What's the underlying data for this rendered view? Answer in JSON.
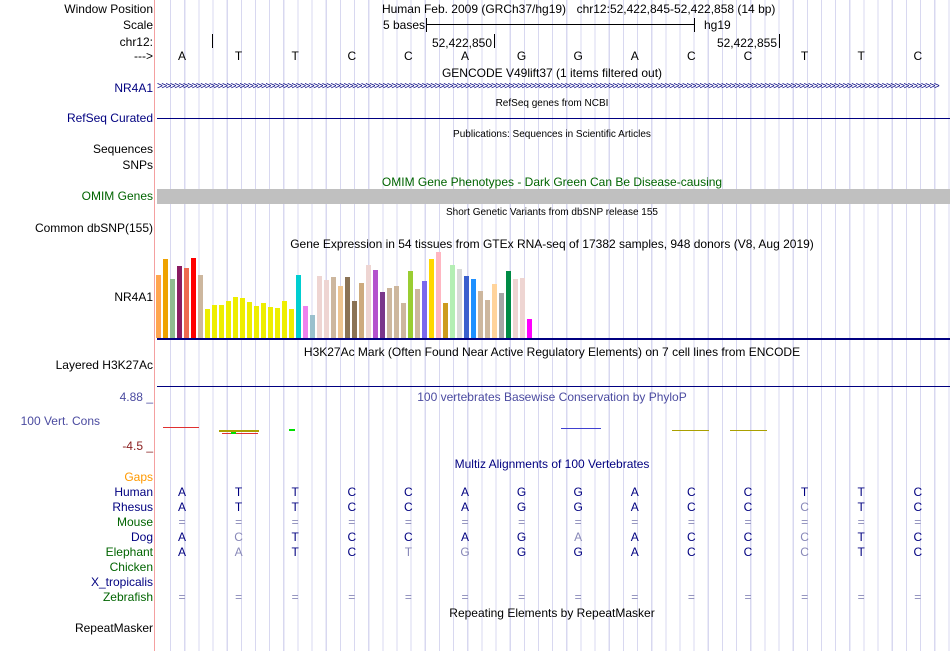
{
  "header": {
    "window_position_label": "Window Position",
    "assembly": "Human Feb. 2009 (GRCh37/hg19)",
    "position": "chr12:52,422,845-52,422,858 (14 bp)",
    "scale_label": "Scale",
    "scale_text": "5 bases",
    "scale_db": "hg19",
    "chrom_label": "chr12:",
    "coord1": "52,422,850",
    "coord2": "52,422,855",
    "strand_label": "--->"
  },
  "bases": [
    "A",
    "T",
    "T",
    "C",
    "C",
    "A",
    "G",
    "G",
    "A",
    "C",
    "C",
    "T",
    "T",
    "C"
  ],
  "tracks": {
    "gencode_title": "GENCODE V49lift37 (1 items filtered out)",
    "gencode_label": "NR4A1",
    "refseq_title": "RefSeq genes from NCBI",
    "refseq_label": "RefSeq Curated",
    "pubs_title": "Publications: Sequences in Scientific Articles",
    "pubs_label": "Sequences",
    "pubs_label2": "SNPs",
    "omim_title": "OMIM Gene Phenotypes - Dark Green Can Be Disease-causing",
    "omim_label": "OMIM Genes",
    "dbsnp_title": "Short Genetic Variants from dbSNP release 155",
    "dbsnp_label": "Common dbSNP(155)",
    "gtex_title": "Gene Expression in 54 tissues from GTEx RNA-seq of 17382 samples, 948 donors (V8, Aug 2019)",
    "gtex_label": "NR4A1",
    "h3k_title": "H3K27Ac Mark (Often Found Near Active Regulatory Elements) on 7 cell lines from ENCODE",
    "h3k_label": "Layered H3K27Ac",
    "phylop_title": "100 vertebrates Basewise Conservation by PhyloP",
    "phylop_label": "100 Vert. Cons",
    "phylop_max": "4.88 _",
    "phylop_min": "-4.5 _",
    "multiz_title": "Multiz Alignments of 100 Vertebrates",
    "gaps_label": "Gaps",
    "rmsk_title": "Repeating Elements by RepeatMasker",
    "rmsk_label": "RepeatMasker"
  },
  "gtex": {
    "heights": [
      63,
      79,
      59,
      72,
      70,
      80,
      63,
      29,
      33,
      33,
      37,
      41,
      40,
      36,
      32,
      35,
      31,
      30,
      37,
      29,
      63,
      32,
      23,
      62,
      58,
      61,
      52,
      61,
      37,
      55,
      73,
      68,
      46,
      50,
      52,
      35,
      67,
      49,
      57,
      79,
      86,
      35,
      73,
      69,
      62,
      59,
      47,
      38,
      54,
      45,
      67,
      59,
      60,
      19
    ],
    "colors": [
      "#FFA54F",
      "#EEA200",
      "#8FBC8F",
      "#8B1C62",
      "#EE6A50",
      "#FF0000",
      "#CDB79E",
      "#EEEE00",
      "#EEEE00",
      "#EEEE00",
      "#EEEE00",
      "#EEEE00",
      "#EEEE00",
      "#EEEE00",
      "#EEEE00",
      "#EEEE00",
      "#EEEE00",
      "#EEEE00",
      "#EEEE00",
      "#EEEE00",
      "#00CED1",
      "#EE82EE",
      "#9AC0CD",
      "#EED5D2",
      "#EED5D2",
      "#CDB79E",
      "#EEC591",
      "#8B7355",
      "#8B7355",
      "#CDAA7D",
      "#EED5D2",
      "#B452CD",
      "#7A378B",
      "#CDB79E",
      "#CDB79E",
      "#CDB79E",
      "#9ACD32",
      "#CDB79E",
      "#7B68EE",
      "#FFD700",
      "#FFB6C1",
      "#CD9B1D",
      "#B4EEB4",
      "#D9D9D9",
      "#3A5FCD",
      "#1E90FF",
      "#CDB79E",
      "#CDB79E",
      "#FFD39B",
      "#A6A6A6",
      "#008B45",
      "#EED5D2",
      "#EED5D2",
      "#FF00FF"
    ]
  },
  "multiz": [
    {
      "name": "Human",
      "color": "#000080",
      "seq": "ATTCCAGGACCTTC",
      "faint": ""
    },
    {
      "name": "Rhesus",
      "color": "#000080",
      "seq": "ATTCCAGGACCCTC",
      "faint": "00000000000100"
    },
    {
      "name": "Mouse",
      "color": "#006400",
      "seq": "==============",
      "faint": "11111111111111"
    },
    {
      "name": "Dog",
      "color": "#000080",
      "seq": "ACTCCAGAACCCTC",
      "faint": "01000001000100"
    },
    {
      "name": "Elephant",
      "color": "#006400",
      "seq": "AATCTGGGACCCTC",
      "faint": "01001100000100"
    },
    {
      "name": "Chicken",
      "color": "#006400",
      "seq": "",
      "faint": ""
    },
    {
      "name": "X_tropicalis",
      "color": "#000080",
      "seq": "",
      "faint": ""
    },
    {
      "name": "Zebrafish",
      "color": "#006400",
      "seq": "==============",
      "faint": "11111111111111"
    }
  ],
  "colors": {
    "navy": "#000080",
    "green": "#006400",
    "omim_bar": "#c0c0c0",
    "gaps": "#ff9900",
    "phylop": "#4b4ba0"
  }
}
